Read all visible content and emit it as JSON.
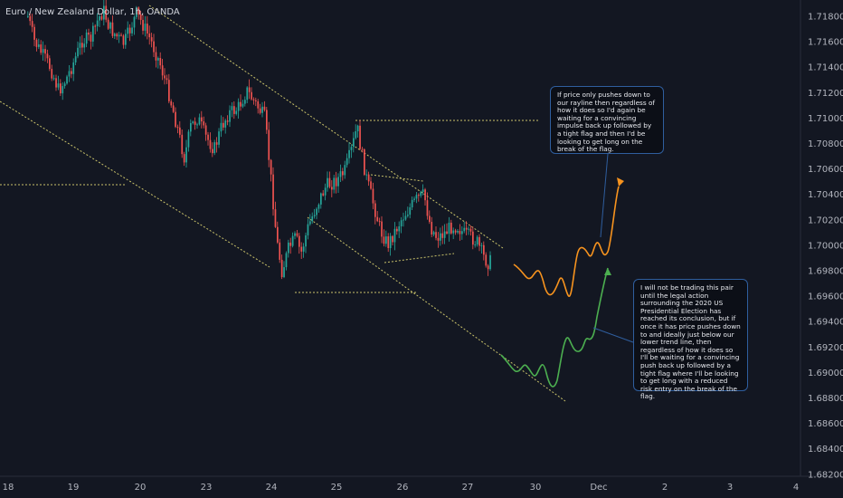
{
  "chart_data": {
    "type": "candlestick",
    "title": "Euro / New Zealand Dollar, 1h, OANDA",
    "y_ticks": [
      "1.71800",
      "1.71600",
      "1.71400",
      "1.71200",
      "1.71000",
      "1.70800",
      "1.70600",
      "1.70400",
      "1.70200",
      "1.70000",
      "1.69800",
      "1.69600",
      "1.69400",
      "1.69200",
      "1.69000",
      "1.68800",
      "1.68600",
      "1.68400",
      "1.68200"
    ],
    "x_ticks": [
      "18",
      "19",
      "20",
      "23",
      "24",
      "25",
      "26",
      "27",
      "30",
      "Dec",
      "2",
      "3",
      "4"
    ],
    "ylim": [
      1.6815,
      1.7195
    ],
    "annotations": [
      "If price only pushes down to our rayline then regardless of how it does so I'd again be waiting for a convincing impulse back up followed by a tight flag and then I'd be looking to get long on the break of the flag.",
      "I will not be trading this pair until the legal action surrounding the 2020 US Presidential Election has reached its conclusion, but if once it has price pushes down to and ideally just below our lower trend line, then regardless of how it does so I'll be waiting for a convincing push back up followed by a tight flag where I'll be looking to get long with a reduced risk entry on the break of the flag."
    ],
    "colors": {
      "up": "#26a69a",
      "down": "#ef5350",
      "background": "#131722",
      "trendline": "#c9c26a",
      "orange_path": "#f7931e",
      "green_path": "#4caf50"
    }
  }
}
